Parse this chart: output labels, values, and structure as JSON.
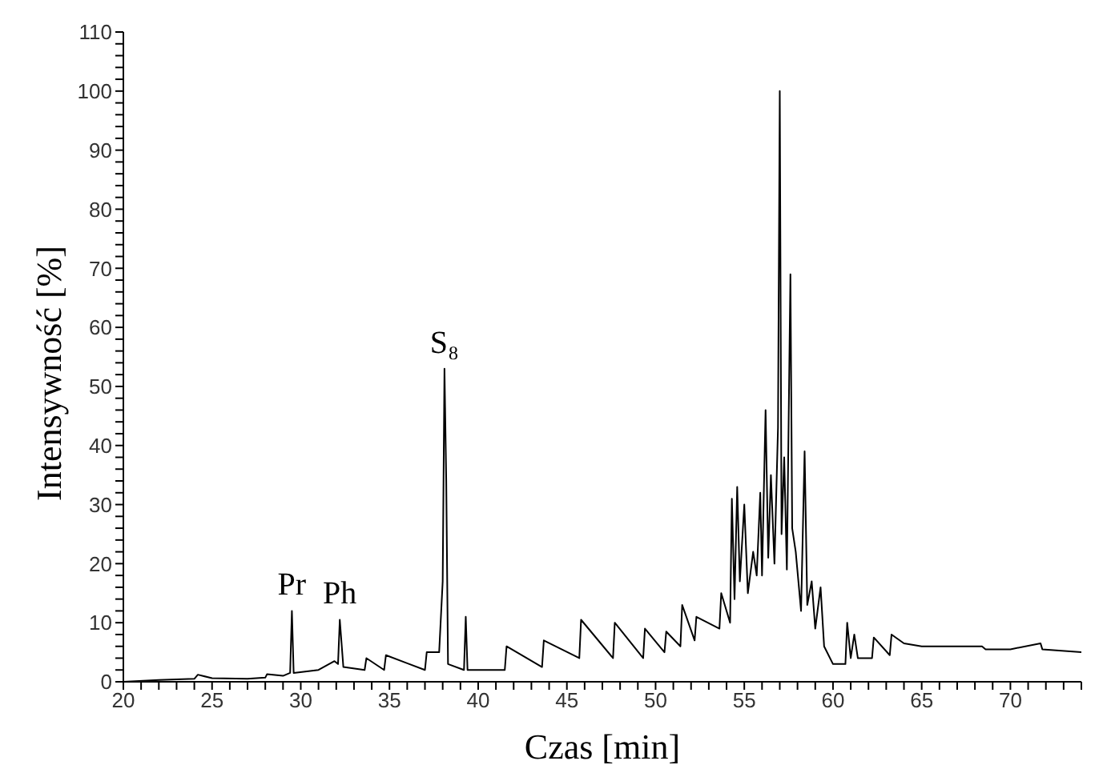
{
  "chart_data": {
    "type": "line",
    "xlabel": "Czas [min]",
    "ylabel": "Intensywność [%]",
    "x": [
      20,
      22,
      24,
      24.2,
      25,
      27,
      28,
      28.1,
      29,
      29.4,
      29.5,
      29.6,
      31,
      31.9,
      32.1,
      32.2,
      32.4,
      33.6,
      33.7,
      34.7,
      34.8,
      37,
      37.1,
      37.8,
      38.0,
      38.1,
      38.2,
      38.3,
      39.2,
      39.3,
      39.4,
      41.5,
      41.6,
      43.6,
      43.7,
      45.7,
      45.8,
      47.6,
      47.7,
      49.3,
      49.4,
      50.5,
      50.6,
      51.4,
      51.5,
      52.2,
      52.3,
      53.6,
      53.7,
      54.2,
      54.3,
      54.45,
      54.6,
      54.75,
      55.0,
      55.2,
      55.5,
      55.7,
      55.9,
      56.0,
      56.2,
      56.35,
      56.5,
      56.7,
      56.9,
      57.0,
      57.1,
      57.25,
      57.4,
      57.6,
      57.7,
      57.9,
      58.2,
      58.4,
      58.55,
      58.8,
      59.0,
      59.3,
      59.5,
      60,
      60.7,
      60.8,
      61,
      61.2,
      61.4,
      62.2,
      62.3,
      63.2,
      63.3,
      64,
      65,
      66.7,
      68.4,
      68.6,
      70,
      71.7,
      71.8,
      74
    ],
    "series": [
      {
        "color": "#000000",
        "values": [
          0,
          0.3,
          0.5,
          1.2,
          0.6,
          0.5,
          0.7,
          1.3,
          1,
          1.5,
          12,
          1.5,
          2,
          3.5,
          3,
          10.5,
          2.5,
          2,
          4,
          2,
          4.5,
          2,
          5,
          5,
          17,
          53,
          34,
          3,
          2,
          11,
          2,
          2,
          6,
          2.5,
          7,
          4,
          10.5,
          4,
          10,
          4,
          9,
          5,
          8.5,
          6,
          13,
          7,
          11,
          9,
          15,
          10,
          31,
          14,
          33,
          17,
          30,
          15,
          22,
          18,
          32,
          18,
          46,
          21,
          35,
          20,
          43,
          100,
          25,
          38,
          19,
          69,
          26,
          22,
          12,
          39,
          13,
          17,
          9,
          16,
          6,
          3,
          3,
          10,
          4,
          8,
          4,
          4,
          7.5,
          4.5,
          8,
          6.5,
          6,
          6,
          6,
          5.5,
          5.5,
          6.5,
          5.5,
          5
        ]
      }
    ],
    "xlim": [
      20,
      74
    ],
    "xticks": [
      20,
      {
        "value": 21,
        "label": null
      },
      {
        "value": 22,
        "label": null
      },
      {
        "value": 23,
        "label": null
      },
      {
        "value": 24,
        "label": null
      },
      25,
      {
        "value": 26,
        "label": null
      },
      {
        "value": 27,
        "label": null
      },
      {
        "value": 28,
        "label": null
      },
      {
        "value": 29,
        "label": null
      },
      30,
      {
        "value": 31,
        "label": null
      },
      {
        "value": 32,
        "label": null
      },
      {
        "value": 33,
        "label": null
      },
      {
        "value": 34,
        "label": null
      },
      35,
      {
        "value": 36,
        "label": null
      },
      {
        "value": 37,
        "label": null
      },
      {
        "value": 38,
        "label": null
      },
      {
        "value": 39,
        "label": null
      },
      40,
      {
        "value": 41,
        "label": null
      },
      {
        "value": 42,
        "label": null
      },
      {
        "value": 43,
        "label": null
      },
      {
        "value": 44,
        "label": null
      },
      45,
      {
        "value": 46,
        "label": null
      },
      {
        "value": 47,
        "label": null
      },
      {
        "value": 48,
        "label": null
      },
      {
        "value": 49,
        "label": null
      },
      50,
      {
        "value": 51,
        "label": null
      },
      {
        "value": 52,
        "label": null
      },
      {
        "value": 53,
        "label": null
      },
      {
        "value": 54,
        "label": null
      },
      55,
      {
        "value": 56,
        "label": null
      },
      {
        "value": 57,
        "label": null
      },
      {
        "value": 58,
        "label": null
      },
      {
        "value": 59,
        "label": null
      },
      60,
      {
        "value": 61,
        "label": null
      },
      {
        "value": 62,
        "label": null
      },
      {
        "value": 63,
        "label": null
      },
      {
        "value": 64,
        "label": null
      },
      65,
      {
        "value": 66,
        "label": null
      },
      {
        "value": 67,
        "label": null
      },
      {
        "value": 68,
        "label": null
      },
      {
        "value": 69,
        "label": null
      },
      70,
      {
        "value": 71,
        "label": null
      },
      {
        "value": 72,
        "label": null
      },
      {
        "value": 73,
        "label": null
      },
      {
        "value": 74,
        "label": null
      }
    ],
    "ylim": [
      0,
      110
    ],
    "yticks": [
      0,
      {
        "value": 2,
        "label": null
      },
      {
        "value": 4,
        "label": null
      },
      {
        "value": 6,
        "label": null
      },
      {
        "value": 8,
        "label": null
      },
      10,
      {
        "value": 12,
        "label": null
      },
      {
        "value": 14,
        "label": null
      },
      {
        "value": 16,
        "label": null
      },
      {
        "value": 18,
        "label": null
      },
      20,
      {
        "value": 22,
        "label": null
      },
      {
        "value": 24,
        "label": null
      },
      {
        "value": 26,
        "label": null
      },
      {
        "value": 28,
        "label": null
      },
      30,
      {
        "value": 32,
        "label": null
      },
      {
        "value": 34,
        "label": null
      },
      {
        "value": 36,
        "label": null
      },
      {
        "value": 38,
        "label": null
      },
      40,
      {
        "value": 42,
        "label": null
      },
      {
        "value": 44,
        "label": null
      },
      {
        "value": 46,
        "label": null
      },
      {
        "value": 48,
        "label": null
      },
      50,
      {
        "value": 52,
        "label": null
      },
      {
        "value": 54,
        "label": null
      },
      {
        "value": 56,
        "label": null
      },
      {
        "value": 58,
        "label": null
      },
      60,
      {
        "value": 62,
        "label": null
      },
      {
        "value": 64,
        "label": null
      },
      {
        "value": 66,
        "label": null
      },
      {
        "value": 68,
        "label": null
      },
      70,
      {
        "value": 72,
        "label": null
      },
      {
        "value": 74,
        "label": null
      },
      {
        "value": 76,
        "label": null
      },
      {
        "value": 78,
        "label": null
      },
      80,
      {
        "value": 82,
        "label": null
      },
      {
        "value": 84,
        "label": null
      },
      {
        "value": 86,
        "label": null
      },
      {
        "value": 88,
        "label": null
      },
      90,
      {
        "value": 92,
        "label": null
      },
      {
        "value": 94,
        "label": null
      },
      {
        "value": 96,
        "label": null
      },
      {
        "value": 98,
        "label": null
      },
      100,
      {
        "value": 102,
        "label": null
      },
      {
        "value": 104,
        "label": null
      },
      {
        "value": 106,
        "label": null
      },
      {
        "value": 108,
        "label": null
      },
      110
    ],
    "annotations": [
      {
        "text": "Pr",
        "x": 29.5,
        "y": 12
      },
      {
        "text": "Ph",
        "x": 32.2,
        "y": 10.5
      },
      {
        "text": "S₈",
        "x": 38.1,
        "y": 53
      }
    ],
    "grid": false,
    "legend": false,
    "marker": "none",
    "line_style": "solid"
  }
}
